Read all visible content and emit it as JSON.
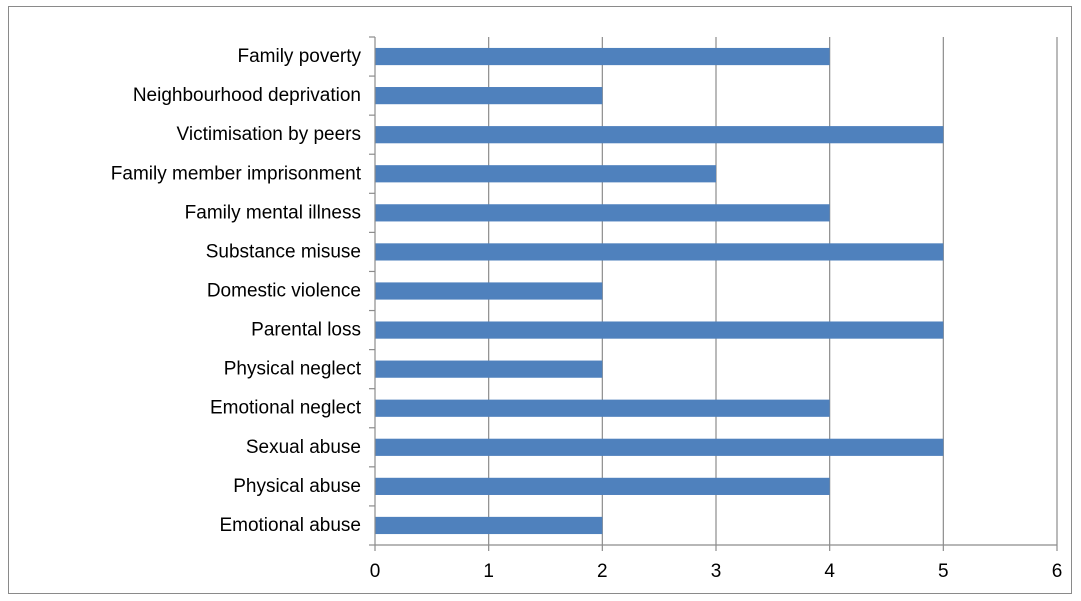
{
  "chart_data": {
    "type": "bar",
    "orientation": "horizontal",
    "categories": [
      "Family poverty",
      "Neighbourhood deprivation",
      "Victimisation by peers",
      "Family member imprisonment",
      "Family mental illness",
      "Substance misuse",
      "Domestic violence",
      "Parental loss",
      "Physical neglect",
      "Emotional neglect",
      "Sexual abuse",
      "Physical abuse",
      "Emotional abuse"
    ],
    "values": [
      4,
      2,
      5,
      3,
      4,
      5,
      2,
      5,
      2,
      4,
      5,
      4,
      2
    ],
    "title": "",
    "xlabel": "",
    "ylabel": "",
    "xlim": [
      0,
      6
    ],
    "xticks": [
      "0",
      "1",
      "2",
      "3",
      "4",
      "5",
      "6"
    ],
    "grid": "vertical",
    "legend": "none",
    "bar_color": "#4f81bd",
    "grid_color": "#8c8c8c",
    "axis_color": "#8c8c8c"
  }
}
